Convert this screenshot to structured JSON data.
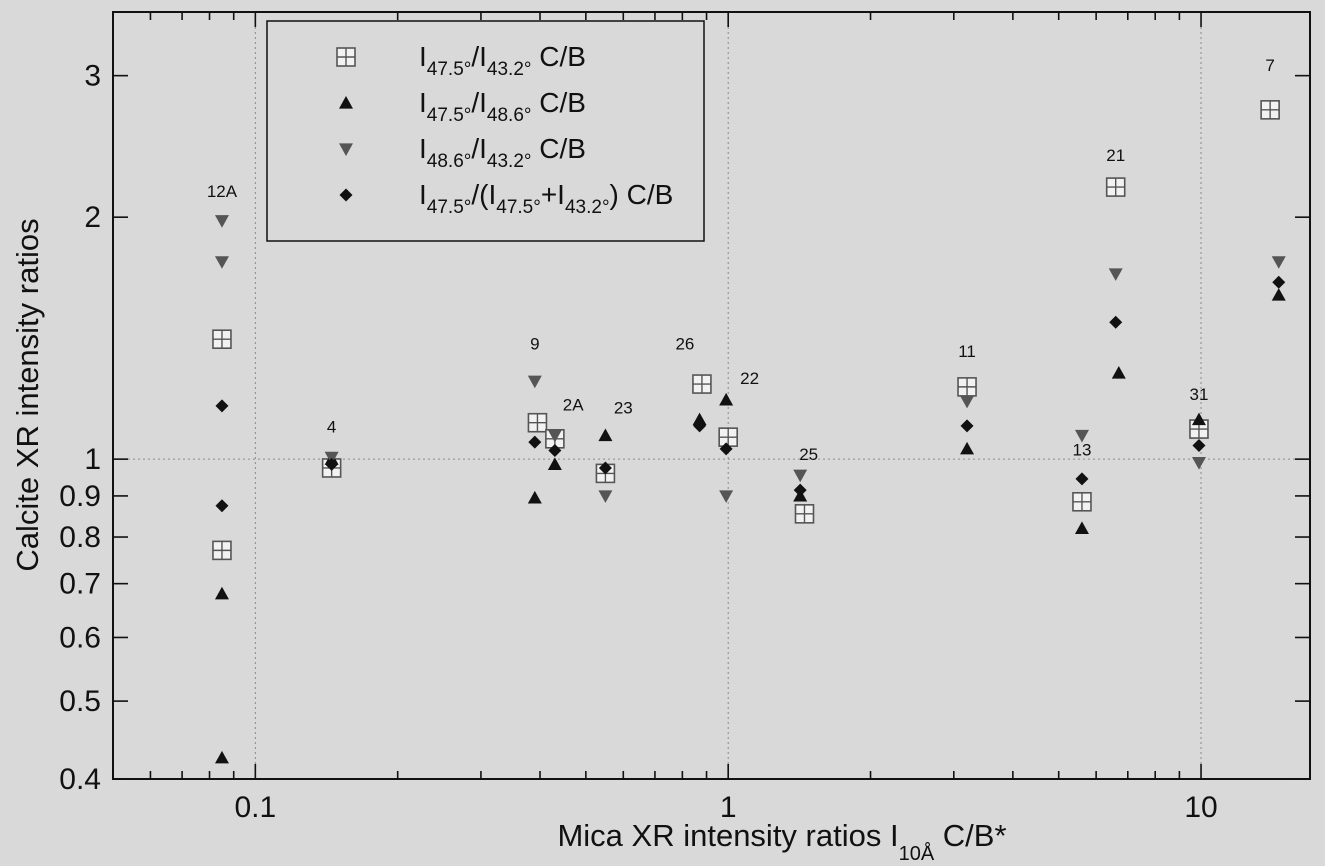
{
  "chart_data": {
    "type": "scatter",
    "title": "",
    "xlabel": "Mica XR intensity ratios I",
    "xlabel_sub": "10Å",
    "xlabel_suffix": " C/B*",
    "ylabel": "Calcite XR intensity ratios",
    "x_scale": "log",
    "y_scale": "log",
    "xlim": [
      0.05,
      17
    ],
    "ylim": [
      0.4,
      3.6
    ],
    "grid": "dashed reference lines at x = 0.1, 1, 10 and y = 1",
    "legend_position": "top-left",
    "x_ticks": [
      0.1,
      1,
      10
    ],
    "x_tick_labels": [
      "0.1",
      "1",
      "10"
    ],
    "y_ticks": [
      0.4,
      0.5,
      0.6,
      0.7,
      0.8,
      0.9,
      1,
      2,
      3
    ],
    "y_tick_labels": [
      "0.4",
      "0.5",
      "0.6",
      "0.7",
      "0.8",
      "0.9",
      "1",
      "2",
      "3"
    ],
    "series": [
      {
        "legend_main": [
          "I",
          "/I",
          " C/B"
        ],
        "legend_subs": [
          "47.5°",
          "43.2°"
        ],
        "marker": "boxed-plus",
        "color": "#555555",
        "points": [
          {
            "x": 0.085,
            "y": 1.41
          },
          {
            "x": 0.085,
            "y": 0.77
          },
          {
            "x": 0.145,
            "y": 0.975
          },
          {
            "x": 0.395,
            "y": 1.11
          },
          {
            "x": 0.43,
            "y": 1.06
          },
          {
            "x": 0.55,
            "y": 0.96
          },
          {
            "x": 0.88,
            "y": 1.24
          },
          {
            "x": 1.0,
            "y": 1.065
          },
          {
            "x": 1.45,
            "y": 0.855
          },
          {
            "x": 3.2,
            "y": 1.23
          },
          {
            "x": 5.6,
            "y": 0.885
          },
          {
            "x": 6.6,
            "y": 2.18
          },
          {
            "x": 9.9,
            "y": 1.09
          },
          {
            "x": 14.0,
            "y": 2.72
          }
        ]
      },
      {
        "legend_main": [
          "I",
          "/I",
          " C/B"
        ],
        "legend_subs": [
          "47.5°",
          "48.6°"
        ],
        "marker": "triangle-up",
        "color": "#111111",
        "points": [
          {
            "x": 0.085,
            "y": 0.68
          },
          {
            "x": 0.085,
            "y": 0.425
          },
          {
            "x": 0.145,
            "y": 1.0
          },
          {
            "x": 0.39,
            "y": 0.895
          },
          {
            "x": 0.43,
            "y": 0.985
          },
          {
            "x": 0.55,
            "y": 1.07
          },
          {
            "x": 0.87,
            "y": 1.12
          },
          {
            "x": 0.99,
            "y": 1.185
          },
          {
            "x": 1.42,
            "y": 0.9
          },
          {
            "x": 3.2,
            "y": 1.03
          },
          {
            "x": 5.6,
            "y": 0.82
          },
          {
            "x": 6.7,
            "y": 1.28
          },
          {
            "x": 9.9,
            "y": 1.12
          },
          {
            "x": 14.6,
            "y": 1.6
          }
        ]
      },
      {
        "legend_main": [
          "I",
          "/I",
          " C/B"
        ],
        "legend_subs": [
          "48.6°",
          "43.2°"
        ],
        "marker": "triangle-down",
        "color": "#555555",
        "points": [
          {
            "x": 0.085,
            "y": 1.98
          },
          {
            "x": 0.085,
            "y": 1.76
          },
          {
            "x": 0.145,
            "y": 1.005
          },
          {
            "x": 0.39,
            "y": 1.25
          },
          {
            "x": 0.43,
            "y": 1.07
          },
          {
            "x": 0.55,
            "y": 0.9
          },
          {
            "x": 0.99,
            "y": 0.9
          },
          {
            "x": 1.42,
            "y": 0.955
          },
          {
            "x": 3.2,
            "y": 1.18
          },
          {
            "x": 5.6,
            "y": 1.07
          },
          {
            "x": 6.6,
            "y": 1.7
          },
          {
            "x": 9.9,
            "y": 0.99
          },
          {
            "x": 14.6,
            "y": 1.76
          }
        ]
      },
      {
        "legend_main": [
          "I",
          "/(I",
          "+I",
          ") C/B"
        ],
        "legend_subs": [
          "47.5°",
          "47.5°",
          "43.2°"
        ],
        "marker": "diamond",
        "color": "#111111",
        "points": [
          {
            "x": 0.085,
            "y": 1.165
          },
          {
            "x": 0.085,
            "y": 0.875
          },
          {
            "x": 0.145,
            "y": 0.985
          },
          {
            "x": 0.39,
            "y": 1.05
          },
          {
            "x": 0.43,
            "y": 1.025
          },
          {
            "x": 0.55,
            "y": 0.975
          },
          {
            "x": 0.87,
            "y": 1.1
          },
          {
            "x": 0.99,
            "y": 1.03
          },
          {
            "x": 1.42,
            "y": 0.915
          },
          {
            "x": 3.2,
            "y": 1.1
          },
          {
            "x": 5.6,
            "y": 0.945
          },
          {
            "x": 6.6,
            "y": 1.48
          },
          {
            "x": 9.9,
            "y": 1.04
          },
          {
            "x": 14.6,
            "y": 1.66
          }
        ]
      }
    ],
    "annotations": [
      {
        "text": "12A",
        "x": 0.085,
        "y": 2.12
      },
      {
        "text": "4",
        "x": 0.145,
        "y": 1.08
      },
      {
        "text": "9",
        "x": 0.39,
        "y": 1.37
      },
      {
        "text": "2A",
        "x": 0.47,
        "y": 1.15
      },
      {
        "text": "23",
        "x": 0.6,
        "y": 1.14
      },
      {
        "text": "26",
        "x": 0.81,
        "y": 1.37
      },
      {
        "text": "22",
        "x": 1.11,
        "y": 1.24
      },
      {
        "text": "25",
        "x": 1.48,
        "y": 0.998
      },
      {
        "text": "11",
        "x": 3.2,
        "y": 1.34
      },
      {
        "text": "13",
        "x": 5.6,
        "y": 1.01
      },
      {
        "text": "21",
        "x": 6.6,
        "y": 2.35
      },
      {
        "text": "31",
        "x": 9.9,
        "y": 1.185
      },
      {
        "text": "7",
        "x": 14.0,
        "y": 3.04
      }
    ]
  }
}
